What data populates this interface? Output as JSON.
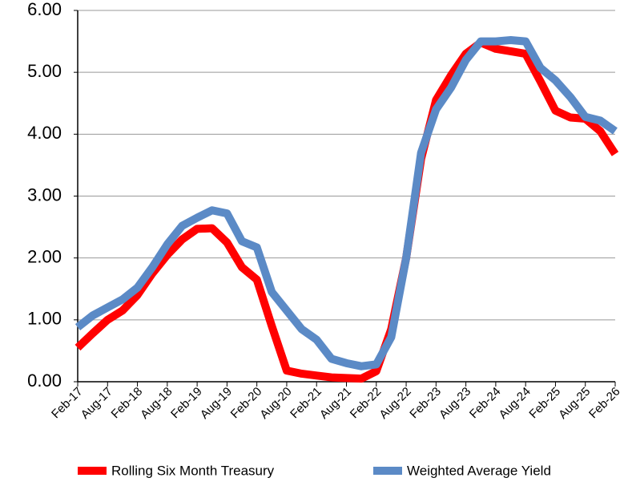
{
  "chart_data": {
    "type": "line",
    "categories": [
      "Feb-17",
      null,
      "Aug-17",
      null,
      "Feb-18",
      null,
      "Aug-18",
      null,
      "Feb-19",
      null,
      "Aug-19",
      null,
      "Feb-20",
      null,
      "Aug-20",
      null,
      "Feb-21",
      null,
      "Aug-21",
      null,
      "Feb-22",
      null,
      "Aug-22",
      null,
      "Feb-23",
      null,
      "Aug-23",
      null,
      "Feb-24",
      null,
      "Aug-24",
      null,
      "Feb-25",
      null,
      "Aug-25",
      null,
      "Feb-26"
    ],
    "series": [
      {
        "name": "Rolling Six Month Treasury",
        "color": "#ff0000",
        "values": [
          0.55,
          0.78,
          1.0,
          1.15,
          1.4,
          1.75,
          2.05,
          2.3,
          2.47,
          2.48,
          2.25,
          1.85,
          1.65,
          0.9,
          0.18,
          0.13,
          0.1,
          0.07,
          0.06,
          0.05,
          0.17,
          0.85,
          2.0,
          3.6,
          4.55,
          4.95,
          5.3,
          5.48,
          5.38,
          5.34,
          5.3,
          4.85,
          4.38,
          4.27,
          4.25,
          4.05,
          3.68
        ]
      },
      {
        "name": "Weighted Average Yield",
        "color": "#5b8ac6",
        "values": [
          0.88,
          1.07,
          1.2,
          1.33,
          1.52,
          1.85,
          2.22,
          2.52,
          2.65,
          2.77,
          2.72,
          2.27,
          2.17,
          1.45,
          1.15,
          0.85,
          0.68,
          0.37,
          0.3,
          0.25,
          0.28,
          0.72,
          2.0,
          3.7,
          4.4,
          4.75,
          5.2,
          5.5,
          5.5,
          5.52,
          5.5,
          5.07,
          4.87,
          4.6,
          4.28,
          4.22,
          4.05
        ]
      }
    ],
    "ylim": [
      0,
      6
    ],
    "yticks": [
      {
        "value": 0,
        "label": "0.00"
      },
      {
        "value": 1,
        "label": "1.00"
      },
      {
        "value": 2,
        "label": "2.00"
      },
      {
        "value": 3,
        "label": "3.00"
      },
      {
        "value": 4,
        "label": "4.00"
      },
      {
        "value": 5,
        "label": "5.00"
      },
      {
        "value": 6,
        "label": "6.00"
      }
    ],
    "grid": true,
    "legend": "bottom"
  }
}
